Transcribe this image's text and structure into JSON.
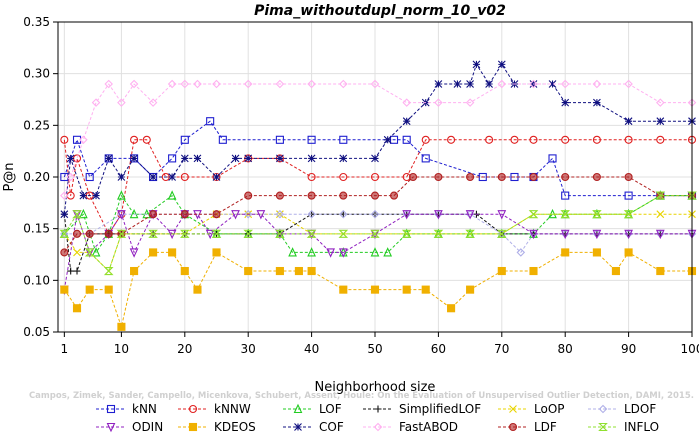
{
  "chart_data": {
    "type": "line",
    "title": "Pima_withoutdupl_norm_10_v02",
    "xlabel": "Neighborhood size",
    "ylabel": "P@n",
    "xlim": [
      0,
      100
    ],
    "ylim": [
      0.05,
      0.35
    ],
    "xticks": [
      1,
      10,
      20,
      30,
      40,
      50,
      60,
      70,
      80,
      90,
      100
    ],
    "yticks": [
      0.05,
      0.1,
      0.15,
      0.2,
      0.25,
      0.3,
      0.35
    ],
    "ytick_labels": [
      "0.05",
      "0.10",
      "0.15",
      "0.20",
      "0.25",
      "0.30",
      "0.35"
    ],
    "grid": true,
    "legend_placement": "bottom",
    "watermark": "Campos, Zimek, Sander, Campello, Micenkova, Schubert, Assent, Houle: On the Evaluation of Unsupervised Outlier Detection, DAMI, 2015.",
    "series": [
      {
        "name": "kNN",
        "color": "#1f1fd0",
        "marker": "square",
        "x": [
          1,
          3,
          5,
          8,
          12,
          15,
          18,
          20,
          24,
          26,
          35,
          40,
          45,
          53,
          55,
          58,
          67,
          72,
          75,
          78,
          80,
          90,
          95,
          100
        ],
        "y": [
          0.2,
          0.236,
          0.2,
          0.218,
          0.218,
          0.2,
          0.218,
          0.236,
          0.254,
          0.236,
          0.236,
          0.236,
          0.236,
          0.236,
          0.236,
          0.218,
          0.2,
          0.2,
          0.2,
          0.218,
          0.182,
          0.182,
          0.182,
          0.182
        ]
      },
      {
        "name": "kNNW",
        "color": "#e02020",
        "marker": "circle",
        "x": [
          1,
          2,
          3,
          5,
          8,
          10,
          12,
          14,
          17,
          20,
          25,
          30,
          35,
          40,
          45,
          50,
          55,
          58,
          62,
          68,
          72,
          75,
          80,
          85,
          90,
          95,
          100
        ],
        "y": [
          0.236,
          0.182,
          0.218,
          0.182,
          0.145,
          0.164,
          0.236,
          0.236,
          0.2,
          0.2,
          0.2,
          0.218,
          0.218,
          0.2,
          0.2,
          0.2,
          0.2,
          0.236,
          0.236,
          0.236,
          0.236,
          0.236,
          0.236,
          0.236,
          0.236,
          0.236,
          0.236
        ]
      },
      {
        "name": "LOF",
        "color": "#22cc22",
        "marker": "triangle",
        "x": [
          1,
          4,
          6,
          8,
          10,
          12,
          14,
          18,
          20,
          25,
          30,
          35,
          37,
          40,
          45,
          50,
          52,
          55,
          60,
          65,
          70,
          75,
          78,
          80,
          85,
          90,
          95,
          100
        ],
        "y": [
          0.145,
          0.164,
          0.127,
          0.145,
          0.182,
          0.164,
          0.164,
          0.182,
          0.164,
          0.145,
          0.145,
          0.145,
          0.127,
          0.127,
          0.127,
          0.127,
          0.127,
          0.145,
          0.145,
          0.145,
          0.145,
          0.145,
          0.164,
          0.164,
          0.164,
          0.164,
          0.182,
          0.182
        ]
      },
      {
        "name": "SimplifiedLOF",
        "color": "#111111",
        "marker": "plus",
        "x": [
          1,
          2,
          3,
          5,
          8,
          10,
          15,
          20,
          25,
          30,
          35,
          40,
          45,
          50,
          55,
          60,
          66,
          70,
          75,
          80,
          85,
          90,
          95,
          100
        ],
        "y": [
          0.164,
          0.109,
          0.109,
          0.145,
          0.145,
          0.145,
          0.145,
          0.145,
          0.145,
          0.145,
          0.145,
          0.164,
          0.164,
          0.164,
          0.164,
          0.164,
          0.164,
          0.145,
          0.145,
          0.145,
          0.145,
          0.145,
          0.145,
          0.145
        ]
      },
      {
        "name": "LoOP",
        "color": "#e8d400",
        "marker": "x",
        "x": [
          1,
          3,
          5,
          8,
          10,
          15,
          20,
          25,
          30,
          35,
          40,
          45,
          50,
          55,
          60,
          65,
          70,
          75,
          80,
          85,
          90,
          95,
          100
        ],
        "y": [
          0.145,
          0.127,
          0.127,
          0.109,
          0.145,
          0.145,
          0.145,
          0.164,
          0.164,
          0.164,
          0.145,
          0.145,
          0.145,
          0.145,
          0.145,
          0.145,
          0.145,
          0.164,
          0.164,
          0.164,
          0.164,
          0.164,
          0.164
        ]
      },
      {
        "name": "LDOF",
        "color": "#b0b0e8",
        "marker": "diamond",
        "x": [
          1,
          5,
          10,
          15,
          20,
          25,
          30,
          35,
          40,
          45,
          50,
          55,
          60,
          65,
          70,
          73,
          75,
          80,
          85,
          90,
          95,
          100
        ],
        "y": [
          0.145,
          0.145,
          0.164,
          0.164,
          0.164,
          0.164,
          0.164,
          0.164,
          0.164,
          0.164,
          0.164,
          0.164,
          0.164,
          0.164,
          0.145,
          0.127,
          0.145,
          0.145,
          0.145,
          0.145,
          0.145,
          0.145
        ]
      },
      {
        "name": "ODIN",
        "color": "#9020c0",
        "marker": "triangle-down",
        "x": [
          1,
          3,
          5,
          8,
          10,
          12,
          15,
          18,
          20,
          22,
          24,
          28,
          32,
          35,
          40,
          43,
          45,
          50,
          55,
          60,
          65,
          70,
          75,
          80,
          85,
          90,
          95,
          100
        ],
        "y": [
          0.091,
          0.164,
          0.127,
          0.145,
          0.164,
          0.127,
          0.164,
          0.145,
          0.164,
          0.164,
          0.145,
          0.164,
          0.164,
          0.145,
          0.145,
          0.127,
          0.127,
          0.145,
          0.164,
          0.164,
          0.164,
          0.164,
          0.145,
          0.145,
          0.145,
          0.145,
          0.145,
          0.145
        ]
      },
      {
        "name": "KDEOS",
        "color": "#f0b000",
        "marker": "square-filled",
        "x": [
          1,
          3,
          5,
          8,
          10,
          12,
          15,
          18,
          20,
          22,
          25,
          30,
          35,
          38,
          40,
          45,
          50,
          55,
          58,
          62,
          65,
          70,
          75,
          80,
          85,
          88,
          90,
          95,
          100
        ],
        "y": [
          0.091,
          0.073,
          0.091,
          0.091,
          0.055,
          0.109,
          0.127,
          0.127,
          0.109,
          0.091,
          0.127,
          0.109,
          0.109,
          0.109,
          0.109,
          0.091,
          0.091,
          0.091,
          0.091,
          0.073,
          0.091,
          0.109,
          0.109,
          0.127,
          0.127,
          0.109,
          0.127,
          0.109,
          0.109
        ]
      },
      {
        "name": "COF",
        "color": "#101080",
        "marker": "star",
        "x": [
          1,
          2,
          4,
          6,
          8,
          10,
          12,
          15,
          18,
          20,
          22,
          25,
          28,
          30,
          35,
          40,
          45,
          50,
          52,
          55,
          58,
          60,
          63,
          65,
          66,
          68,
          70,
          72,
          75,
          78,
          80,
          85,
          90,
          95,
          100
        ],
        "y": [
          0.164,
          0.218,
          0.182,
          0.182,
          0.218,
          0.2,
          0.218,
          0.2,
          0.2,
          0.218,
          0.218,
          0.2,
          0.218,
          0.218,
          0.218,
          0.218,
          0.218,
          0.218,
          0.236,
          0.254,
          0.272,
          0.29,
          0.29,
          0.29,
          0.309,
          0.29,
          0.309,
          0.29,
          0.29,
          0.29,
          0.272,
          0.272,
          0.254,
          0.254,
          0.254
        ]
      },
      {
        "name": "FastABOD",
        "color": "#ffb0f0",
        "marker": "diamond",
        "x": [
          1,
          2,
          4,
          6,
          8,
          10,
          12,
          15,
          18,
          20,
          22,
          25,
          30,
          35,
          40,
          45,
          50,
          55,
          60,
          65,
          70,
          75,
          80,
          85,
          90,
          95,
          100
        ],
        "y": [
          0.182,
          0.2,
          0.236,
          0.272,
          0.29,
          0.272,
          0.29,
          0.272,
          0.29,
          0.29,
          0.29,
          0.29,
          0.29,
          0.29,
          0.29,
          0.29,
          0.29,
          0.272,
          0.272,
          0.272,
          0.29,
          0.29,
          0.29,
          0.29,
          0.29,
          0.272,
          0.272
        ]
      },
      {
        "name": "LDF",
        "color": "#b02020",
        "marker": "circle-filled",
        "x": [
          1,
          3,
          5,
          8,
          10,
          15,
          20,
          25,
          30,
          35,
          40,
          45,
          50,
          53,
          56,
          60,
          65,
          70,
          75,
          80,
          85,
          90,
          95,
          100
        ],
        "y": [
          0.127,
          0.145,
          0.145,
          0.145,
          0.145,
          0.164,
          0.164,
          0.164,
          0.182,
          0.182,
          0.182,
          0.182,
          0.182,
          0.182,
          0.2,
          0.2,
          0.2,
          0.2,
          0.2,
          0.2,
          0.2,
          0.2,
          0.182,
          0.182
        ]
      },
      {
        "name": "INFLO",
        "color": "#90e030",
        "marker": "hourglass",
        "x": [
          1,
          3,
          5,
          8,
          10,
          15,
          20,
          25,
          30,
          35,
          40,
          45,
          50,
          55,
          60,
          65,
          70,
          75,
          80,
          85,
          90,
          95,
          100
        ],
        "y": [
          0.145,
          0.164,
          0.127,
          0.109,
          0.145,
          0.145,
          0.145,
          0.145,
          0.145,
          0.145,
          0.145,
          0.145,
          0.145,
          0.145,
          0.145,
          0.145,
          0.145,
          0.164,
          0.164,
          0.164,
          0.164,
          0.182,
          0.182
        ]
      }
    ]
  }
}
